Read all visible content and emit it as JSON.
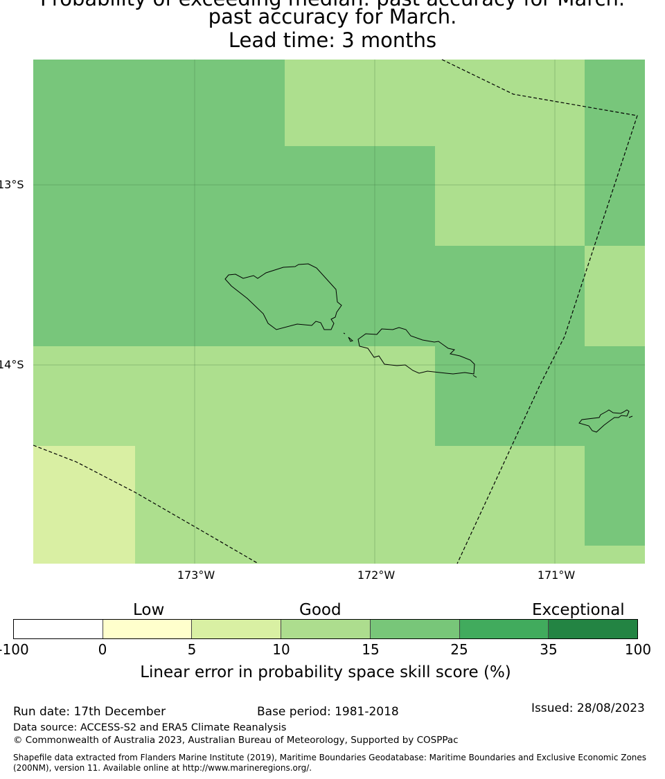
{
  "title": {
    "line1": "Probability of exceeding median: past accuracy for March.",
    "line2": "past accuracy for March.",
    "line3": "Lead time: 3 months"
  },
  "map": {
    "lat_labels": [
      "13°S",
      "14°S"
    ],
    "lon_labels": [
      "173°W",
      "172°W",
      "171°W"
    ],
    "colors": {
      "c10_15": "#addf8e",
      "c15_25": "#78c67b",
      "c5_10": "#d9efa3"
    }
  },
  "colorbar": {
    "categories": [
      "Low",
      "Good",
      "Exceptional"
    ],
    "ticks": [
      "-100",
      "0",
      "5",
      "10",
      "15",
      "25",
      "35",
      "100"
    ],
    "colors": [
      "#ffffff",
      "#ffffcc",
      "#d9f0a3",
      "#addd8e",
      "#78c679",
      "#41ab5d",
      "#238443"
    ],
    "label": "Linear error in probability space skill score (%)"
  },
  "footer": {
    "run_date": "Run date: 17th December",
    "base_period": "Base period: 1981-2018",
    "issued": "Issued: 28/08/2023",
    "data_source": "Data source: ACCESS-S2 and ERA5 Climate Reanalysis",
    "copyright": "© Commonwealth of Australia 2023, Australian Bureau of Meteorology, Supported by COSPPac",
    "shapefile_line1": "Shapefile data extracted from Flanders Marine Institute (2019), Maritime Boundaries Geodatabase: Maritime Boundaries and Exclusive Economic Zones",
    "shapefile_line2": "(200NM), version 11. Available online at http://www.marineregions.org/."
  }
}
